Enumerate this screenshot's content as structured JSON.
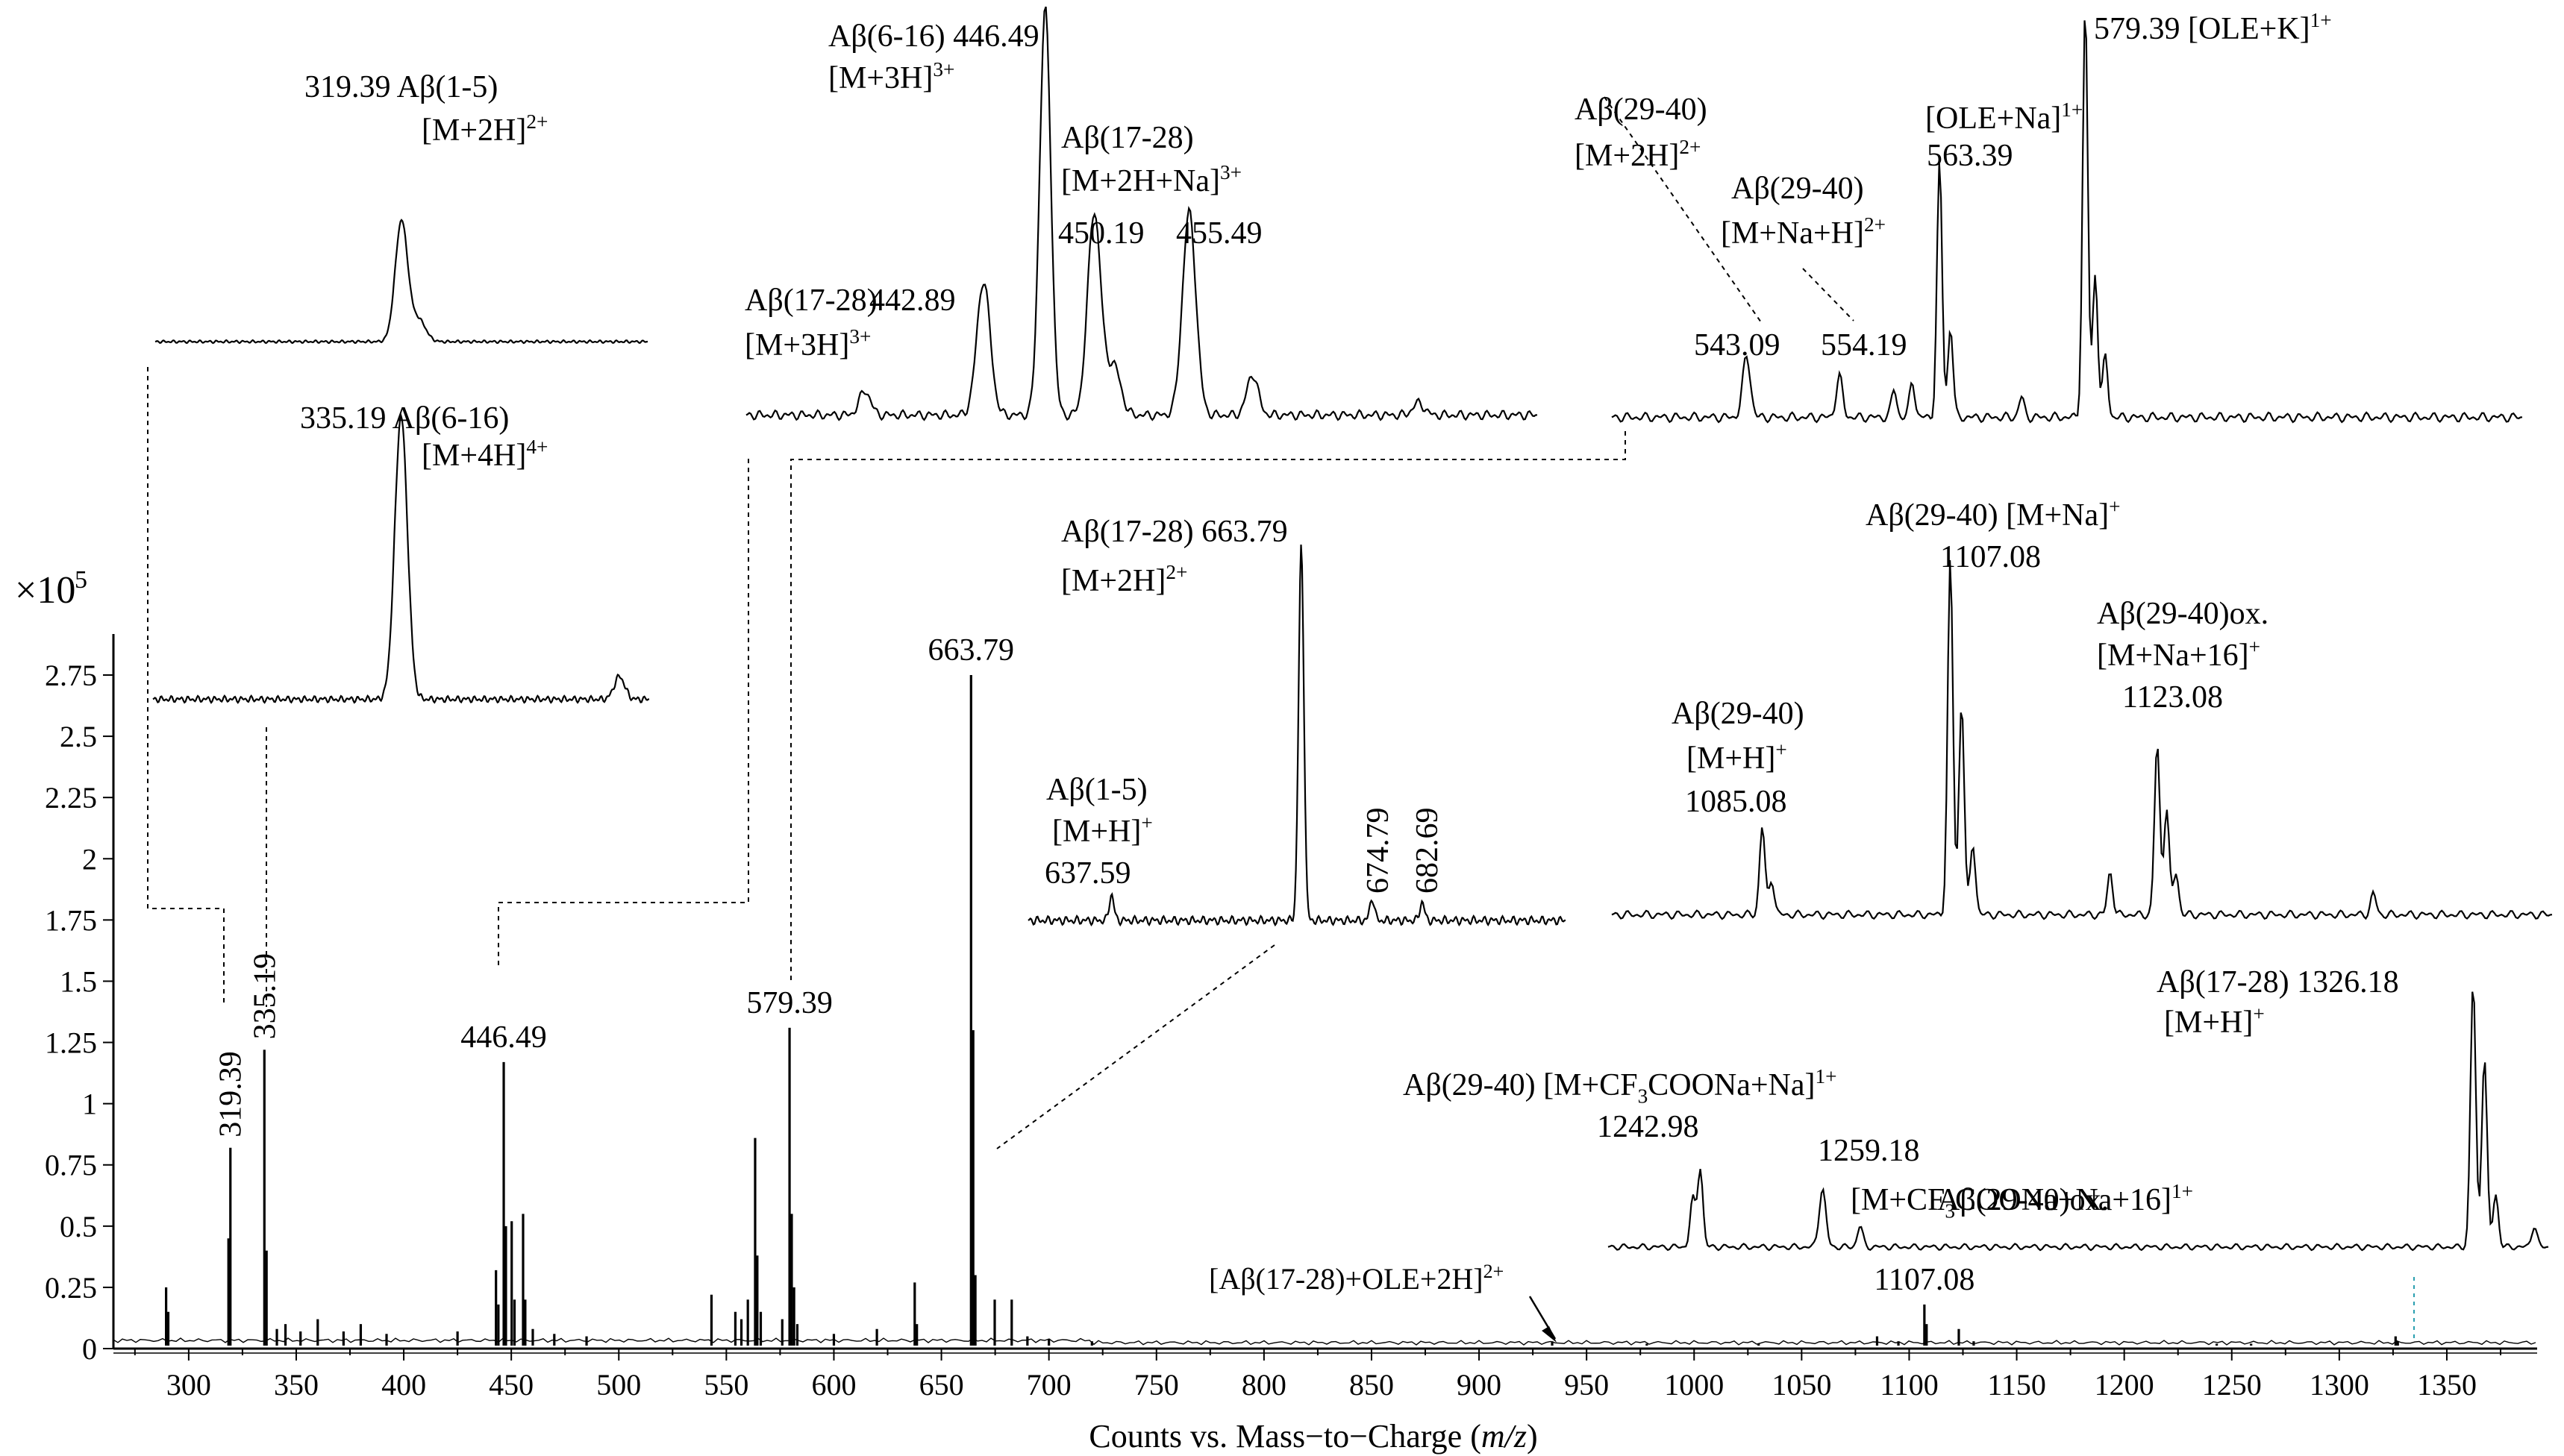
{
  "chart_data": {
    "type": "line",
    "x_axis_label": "Counts vs. Mass−to−Charge (m/z)",
    "y_scale_label": "×10",
    "y_scale_exponent": "5",
    "xlim": [
      265,
      1392
    ],
    "ylim": [
      0,
      3.0
    ],
    "x_ticks": [
      "300",
      "350",
      "400",
      "450",
      "500",
      "550",
      "600",
      "650",
      "700",
      "750",
      "800",
      "850",
      "900",
      "950",
      "1000",
      "1050",
      "1100",
      "1150",
      "1200",
      "1250",
      "1300",
      "1350"
    ],
    "y_ticks": [
      "0",
      "0.25",
      "0.5",
      "0.75",
      "1",
      "1.25",
      "1.5",
      "1.75",
      "2",
      "2.25",
      "2.5",
      "2.75"
    ],
    "main_spectrum": {
      "peaks": [
        {
          "x": 289.5,
          "y": 0.25
        },
        {
          "x": 290.5,
          "y": 0.15
        },
        {
          "x": 319.39,
          "y": 0.82
        },
        {
          "x": 318.5,
          "y": 0.45
        },
        {
          "x": 335.19,
          "y": 1.22
        },
        {
          "x": 336.2,
          "y": 0.4
        },
        {
          "x": 341,
          "y": 0.08
        },
        {
          "x": 345,
          "y": 0.1
        },
        {
          "x": 352,
          "y": 0.07
        },
        {
          "x": 360,
          "y": 0.12
        },
        {
          "x": 372,
          "y": 0.07
        },
        {
          "x": 380,
          "y": 0.1
        },
        {
          "x": 392,
          "y": 0.06
        },
        {
          "x": 425,
          "y": 0.07
        },
        {
          "x": 442.89,
          "y": 0.32
        },
        {
          "x": 444,
          "y": 0.18
        },
        {
          "x": 446.49,
          "y": 1.17
        },
        {
          "x": 447.5,
          "y": 0.5
        },
        {
          "x": 450.19,
          "y": 0.52
        },
        {
          "x": 451.5,
          "y": 0.2
        },
        {
          "x": 455.49,
          "y": 0.55
        },
        {
          "x": 456.5,
          "y": 0.2
        },
        {
          "x": 460,
          "y": 0.08
        },
        {
          "x": 470,
          "y": 0.06
        },
        {
          "x": 485,
          "y": 0.05
        },
        {
          "x": 543.09,
          "y": 0.22
        },
        {
          "x": 554.19,
          "y": 0.15
        },
        {
          "x": 557,
          "y": 0.12
        },
        {
          "x": 560,
          "y": 0.2
        },
        {
          "x": 563.39,
          "y": 0.86
        },
        {
          "x": 564.4,
          "y": 0.38
        },
        {
          "x": 566,
          "y": 0.15
        },
        {
          "x": 576,
          "y": 0.12
        },
        {
          "x": 579.39,
          "y": 1.31
        },
        {
          "x": 580.4,
          "y": 0.55
        },
        {
          "x": 581.5,
          "y": 0.25
        },
        {
          "x": 583,
          "y": 0.1
        },
        {
          "x": 600,
          "y": 0.06
        },
        {
          "x": 620,
          "y": 0.08
        },
        {
          "x": 637.59,
          "y": 0.27
        },
        {
          "x": 638.6,
          "y": 0.1
        },
        {
          "x": 663.79,
          "y": 2.75
        },
        {
          "x": 664.8,
          "y": 1.3
        },
        {
          "x": 665.8,
          "y": 0.3
        },
        {
          "x": 674.79,
          "y": 0.2
        },
        {
          "x": 682.69,
          "y": 0.2
        },
        {
          "x": 690,
          "y": 0.05
        },
        {
          "x": 700,
          "y": 0.04
        },
        {
          "x": 720,
          "y": 0.03
        },
        {
          "x": 934,
          "y": 0.03
        },
        {
          "x": 978,
          "y": 0.02
        },
        {
          "x": 1030,
          "y": 0.02
        },
        {
          "x": 1085.08,
          "y": 0.05
        },
        {
          "x": 1095,
          "y": 0.03
        },
        {
          "x": 1107.08,
          "y": 0.18
        },
        {
          "x": 1108.1,
          "y": 0.1
        },
        {
          "x": 1123.08,
          "y": 0.08
        },
        {
          "x": 1130,
          "y": 0.03
        },
        {
          "x": 1243,
          "y": 0.02
        },
        {
          "x": 1259,
          "y": 0.02
        },
        {
          "x": 1326.18,
          "y": 0.05
        },
        {
          "x": 1327.2,
          "y": 0.03
        }
      ],
      "labels": [
        {
          "x": 319.39,
          "text": "319.39",
          "rotated": true
        },
        {
          "x": 335.19,
          "text": "335.19",
          "rotated": true
        },
        {
          "x": 446.49,
          "text": "446.49",
          "rotated": false
        },
        {
          "x": 579.39,
          "text": "579.39",
          "rotated": false
        },
        {
          "x": 663.79,
          "text": "663.79",
          "rotated": false
        },
        {
          "x": 1107.08,
          "text": "1107.08",
          "rotated": false
        }
      ],
      "annotation": {
        "text": "[Aβ(17-28)+OLE+2H]",
        "charge": "2+",
        "x": 934
      }
    },
    "insets": [
      {
        "id": "inset-319",
        "peaks": [
          {
            "x": 0.5,
            "y": 1.0,
            "w": 0.018
          },
          {
            "x": 0.535,
            "y": 0.18,
            "w": 0.02
          }
        ],
        "labels": [
          {
            "text": "319.39 Aβ(1-5)",
            "charge": ""
          },
          {
            "text": "[M+2H]",
            "charge": "2+"
          }
        ]
      },
      {
        "id": "inset-335",
        "peaks": [
          {
            "x": 0.5,
            "y": 1.0,
            "w": 0.018
          },
          {
            "x": 0.94,
            "y": 0.08,
            "w": 0.015
          }
        ],
        "labels": [
          {
            "text": "335.19 Aβ(6-16)",
            "charge": ""
          },
          {
            "text": "[M+4H]",
            "charge": "4+"
          }
        ]
      },
      {
        "id": "inset-446",
        "peaks": [
          {
            "x": 0.15,
            "y": 0.06,
            "w": 0.01
          },
          {
            "x": 0.3,
            "y": 0.33,
            "w": 0.012
          },
          {
            "x": 0.378,
            "y": 1.0,
            "w": 0.01
          },
          {
            "x": 0.44,
            "y": 0.5,
            "w": 0.012
          },
          {
            "x": 0.465,
            "y": 0.12,
            "w": 0.012
          },
          {
            "x": 0.56,
            "y": 0.5,
            "w": 0.012
          },
          {
            "x": 0.64,
            "y": 0.1,
            "w": 0.01
          },
          {
            "x": 0.85,
            "y": 0.03,
            "w": 0.01
          }
        ],
        "labels": [
          {
            "text": "Aβ(6-16) 446.49",
            "charge": ""
          },
          {
            "text": "[M+3H]",
            "charge": "3+"
          },
          {
            "text": "Aβ(17-28)",
            "charge": ""
          },
          {
            "text": "[M+2H+Na]",
            "charge": "3+"
          },
          {
            "text": "450.19",
            "charge": ""
          },
          {
            "text": "455.49",
            "charge": ""
          },
          {
            "text": "Aβ(17-28)",
            "charge": ""
          },
          {
            "text": "[M+3H]",
            "charge": "3+"
          },
          {
            "text": "442.89",
            "charge": ""
          }
        ]
      },
      {
        "id": "inset-579",
        "peaks": [
          {
            "x": 0.148,
            "y": 0.15,
            "w": 0.006
          },
          {
            "x": 0.25,
            "y": 0.1,
            "w": 0.005
          },
          {
            "x": 0.31,
            "y": 0.07,
            "w": 0.004
          },
          {
            "x": 0.33,
            "y": 0.09,
            "w": 0.004
          },
          {
            "x": 0.36,
            "y": 0.62,
            "w": 0.004
          },
          {
            "x": 0.372,
            "y": 0.22,
            "w": 0.004
          },
          {
            "x": 0.45,
            "y": 0.05,
            "w": 0.004
          },
          {
            "x": 0.52,
            "y": 1.0,
            "w": 0.004
          },
          {
            "x": 0.531,
            "y": 0.35,
            "w": 0.004
          },
          {
            "x": 0.542,
            "y": 0.15,
            "w": 0.004
          }
        ],
        "labels": [
          {
            "text": "579.39 [OLE+K]",
            "charge": "1+"
          },
          {
            "text": "Aβ(29-40)",
            "charge": ""
          },
          {
            "text": "[M+2H]",
            "charge": "2+"
          },
          {
            "text": "[OLE+Na]",
            "charge": "1+"
          },
          {
            "text": "563.39",
            "charge": ""
          },
          {
            "text": "Aβ(29-40)",
            "charge": ""
          },
          {
            "text": "[M+Na+H]",
            "charge": "2+"
          },
          {
            "text": "543.09",
            "charge": ""
          },
          {
            "text": "554.19",
            "charge": ""
          }
        ]
      },
      {
        "id": "inset-663",
        "peaks": [
          {
            "x": 0.155,
            "y": 0.07,
            "w": 0.006
          },
          {
            "x": 0.508,
            "y": 1.0,
            "w": 0.007
          },
          {
            "x": 0.64,
            "y": 0.06,
            "w": 0.006
          },
          {
            "x": 0.733,
            "y": 0.05,
            "w": 0.006
          }
        ],
        "labels": [
          {
            "text": "Aβ(17-28) 663.79",
            "charge": ""
          },
          {
            "text": "[M+2H]",
            "charge": "2+"
          },
          {
            "text": "Aβ(1-5)",
            "charge": ""
          },
          {
            "text": "[M+H]",
            "charge": "+"
          },
          {
            "text": "637.59",
            "charge": ""
          },
          {
            "text": "674.79",
            "charge": ""
          },
          {
            "text": "682.69",
            "charge": ""
          }
        ]
      },
      {
        "id": "inset-1107",
        "peaks": [
          {
            "x": 0.16,
            "y": 0.25,
            "w": 0.004
          },
          {
            "x": 0.17,
            "y": 0.1,
            "w": 0.004
          },
          {
            "x": 0.36,
            "y": 1.0,
            "w": 0.004
          },
          {
            "x": 0.372,
            "y": 0.6,
            "w": 0.004
          },
          {
            "x": 0.384,
            "y": 0.2,
            "w": 0.004
          },
          {
            "x": 0.53,
            "y": 0.12,
            "w": 0.004
          },
          {
            "x": 0.58,
            "y": 0.48,
            "w": 0.004
          },
          {
            "x": 0.59,
            "y": 0.3,
            "w": 0.004
          },
          {
            "x": 0.6,
            "y": 0.12,
            "w": 0.004
          },
          {
            "x": 0.81,
            "y": 0.06,
            "w": 0.004
          }
        ],
        "labels": [
          {
            "text": "Aβ(29-40) [M+Na]",
            "charge": "+"
          },
          {
            "text": "1107.08",
            "charge": ""
          },
          {
            "text": "Aβ(29-40)ox.",
            "charge": ""
          },
          {
            "text": "[M+Na+16]",
            "charge": "+"
          },
          {
            "text": "1123.08",
            "charge": ""
          },
          {
            "text": "Aβ(29-40)",
            "charge": ""
          },
          {
            "text": "[M+H]",
            "charge": "+"
          },
          {
            "text": "1085.08",
            "charge": ""
          }
        ]
      },
      {
        "id": "inset-1326",
        "peaks": [
          {
            "x": 0.09,
            "y": 0.18,
            "w": 0.004
          },
          {
            "x": 0.098,
            "y": 0.3,
            "w": 0.004
          },
          {
            "x": 0.228,
            "y": 0.22,
            "w": 0.005
          },
          {
            "x": 0.268,
            "y": 0.08,
            "w": 0.004
          },
          {
            "x": 0.92,
            "y": 1.0,
            "w": 0.004
          },
          {
            "x": 0.932,
            "y": 0.72,
            "w": 0.004
          },
          {
            "x": 0.944,
            "y": 0.2,
            "w": 0.004
          },
          {
            "x": 0.985,
            "y": 0.08,
            "w": 0.004
          }
        ],
        "labels": [
          {
            "text": "Aβ(17-28) 1326.18",
            "charge": ""
          },
          {
            "text": "[M+H]",
            "charge": "+"
          },
          {
            "text": "Aβ(29-40) [M+CF",
            "sub": "3",
            "rest": "COONa+Na]",
            "charge": "1+"
          },
          {
            "text": "1242.98",
            "charge": ""
          },
          {
            "text": "1259.18",
            "charge": ""
          },
          {
            "text": "Aβ(29-40)ox.",
            "charge": ""
          },
          {
            "text": "[M+CF",
            "sub": "3",
            "rest": "COONa+Na+16]",
            "charge": "1+"
          }
        ]
      }
    ]
  }
}
